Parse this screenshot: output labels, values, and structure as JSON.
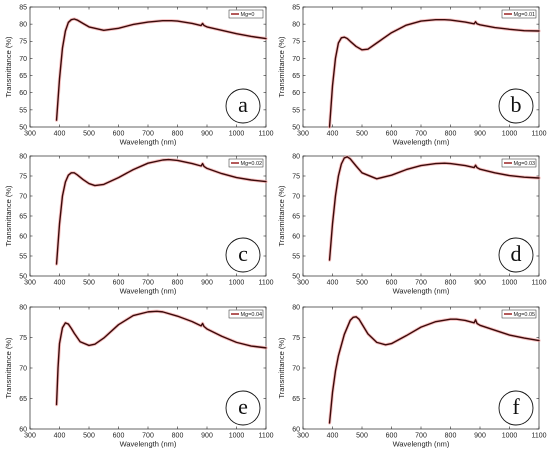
{
  "chart_data": [
    {
      "type": "line",
      "letter": "a",
      "legend": "Mg=0",
      "xlabel": "Wavelength (nm)",
      "ylabel": "Transmittance (%)",
      "xlim": [
        300,
        1100
      ],
      "ylim": [
        50,
        85
      ],
      "xticks": [
        300,
        400,
        500,
        600,
        700,
        800,
        900,
        1000,
        1100
      ],
      "yticks": [
        50,
        55,
        60,
        65,
        70,
        75,
        80,
        85
      ],
      "x": [
        390,
        400,
        410,
        420,
        430,
        440,
        450,
        460,
        480,
        500,
        550,
        600,
        650,
        700,
        750,
        780,
        800,
        850,
        880,
        885,
        890,
        900,
        950,
        1000,
        1050,
        1100
      ],
      "values": [
        52,
        64,
        73,
        78,
        80.5,
        81.3,
        81.5,
        81.2,
        80.2,
        79.2,
        78.2,
        78.8,
        79.9,
        80.6,
        81.0,
        81.0,
        80.9,
        80.2,
        79.6,
        80.2,
        79.6,
        79.2,
        78.2,
        77.2,
        76.4,
        75.8
      ]
    },
    {
      "type": "line",
      "letter": "b",
      "legend": "Mg=0.01",
      "xlabel": "Wavelength (nm)",
      "ylabel": "Transmittance (%)",
      "xlim": [
        300,
        1100
      ],
      "ylim": [
        50,
        85
      ],
      "xticks": [
        300,
        400,
        500,
        600,
        700,
        800,
        900,
        1000,
        1100
      ],
      "yticks": [
        50,
        55,
        60,
        65,
        70,
        75,
        80,
        85
      ],
      "x": [
        390,
        400,
        410,
        420,
        430,
        440,
        450,
        460,
        480,
        500,
        520,
        550,
        600,
        650,
        700,
        750,
        780,
        800,
        850,
        880,
        885,
        890,
        900,
        950,
        1000,
        1050,
        1100
      ],
      "values": [
        50,
        62,
        70,
        74.5,
        76,
        76.2,
        75.8,
        75,
        73.5,
        72.5,
        72.7,
        74.5,
        77.5,
        79.7,
        80.9,
        81.3,
        81.3,
        81.2,
        80.6,
        80.1,
        80.7,
        80.1,
        79.8,
        79.0,
        78.5,
        78.1,
        78.0
      ]
    },
    {
      "type": "line",
      "letter": "c",
      "legend": "Mg=0.02",
      "xlabel": "Wavelength (nm)",
      "ylabel": "Transmittance (%)",
      "xlim": [
        300,
        1100
      ],
      "ylim": [
        50,
        80
      ],
      "xticks": [
        300,
        400,
        500,
        600,
        700,
        800,
        900,
        1000,
        1100
      ],
      "yticks": [
        50,
        55,
        60,
        65,
        70,
        75,
        80
      ],
      "x": [
        390,
        400,
        410,
        420,
        430,
        440,
        450,
        460,
        480,
        500,
        520,
        550,
        600,
        650,
        700,
        750,
        770,
        800,
        850,
        880,
        885,
        890,
        900,
        950,
        1000,
        1050,
        1100
      ],
      "values": [
        53,
        63,
        70,
        73.5,
        75.2,
        75.8,
        75.8,
        75.3,
        74.1,
        73.1,
        72.6,
        72.9,
        74.6,
        76.6,
        78.2,
        79.0,
        79.1,
        78.9,
        78.1,
        77.5,
        78.1,
        77.4,
        76.9,
        75.6,
        74.6,
        74.0,
        73.6
      ]
    },
    {
      "type": "line",
      "letter": "d",
      "legend": "Mg=0.03",
      "xlabel": "Wavelength (nm)",
      "ylabel": "Transmittance (%)",
      "xlim": [
        300,
        1100
      ],
      "ylim": [
        50,
        80
      ],
      "xticks": [
        300,
        400,
        500,
        600,
        700,
        800,
        900,
        1000,
        1100
      ],
      "yticks": [
        50,
        55,
        60,
        65,
        70,
        75,
        80
      ],
      "x": [
        390,
        400,
        410,
        420,
        430,
        440,
        450,
        460,
        480,
        500,
        550,
        600,
        650,
        700,
        750,
        780,
        800,
        850,
        880,
        885,
        890,
        900,
        950,
        1000,
        1050,
        1100
      ],
      "values": [
        54,
        63,
        70,
        75,
        78,
        79.5,
        79.8,
        79.3,
        77.5,
        75.8,
        74.3,
        75.2,
        76.6,
        77.6,
        78.1,
        78.2,
        78.1,
        77.6,
        77.1,
        77.7,
        77.1,
        76.7,
        75.8,
        75.1,
        74.7,
        74.5
      ]
    },
    {
      "type": "line",
      "letter": "e",
      "legend": "Mg=0.04",
      "xlabel": "Wavelength (nm)",
      "ylabel": "Transmittance (%)",
      "xlim": [
        300,
        1100
      ],
      "ylim": [
        60,
        80
      ],
      "xticks": [
        300,
        400,
        500,
        600,
        700,
        800,
        900,
        1000,
        1100
      ],
      "yticks": [
        60,
        65,
        70,
        75,
        80
      ],
      "x": [
        390,
        395,
        400,
        410,
        420,
        430,
        440,
        450,
        470,
        500,
        520,
        550,
        600,
        650,
        700,
        730,
        750,
        800,
        850,
        880,
        885,
        890,
        900,
        950,
        1000,
        1050,
        1100
      ],
      "values": [
        64,
        70,
        74,
        76.6,
        77.4,
        77.2,
        76.5,
        75.7,
        74.3,
        73.7,
        73.9,
        74.9,
        77.1,
        78.6,
        79.2,
        79.3,
        79.2,
        78.5,
        77.6,
        76.9,
        77.3,
        76.8,
        76.4,
        75.2,
        74.2,
        73.6,
        73.3
      ]
    },
    {
      "type": "line",
      "letter": "f",
      "legend": "Mg=0.05",
      "xlabel": "Wavelength (nm)",
      "ylabel": "Transmittance (%)",
      "xlim": [
        300,
        1100
      ],
      "ylim": [
        60,
        80
      ],
      "xticks": [
        300,
        400,
        500,
        600,
        700,
        800,
        900,
        1000,
        1100
      ],
      "yticks": [
        60,
        65,
        70,
        75,
        80
      ],
      "x": [
        390,
        400,
        410,
        420,
        440,
        460,
        470,
        480,
        490,
        500,
        520,
        550,
        580,
        600,
        650,
        700,
        750,
        800,
        820,
        850,
        880,
        885,
        890,
        900,
        950,
        1000,
        1050,
        1100
      ],
      "values": [
        61,
        66,
        69.5,
        72,
        75.5,
        77.8,
        78.3,
        78.4,
        78.0,
        77.2,
        75.6,
        74.2,
        73.8,
        74.0,
        75.3,
        76.7,
        77.6,
        78.0,
        78.0,
        77.8,
        77.4,
        77.9,
        77.3,
        77.0,
        76.2,
        75.4,
        74.9,
        74.5
      ]
    }
  ]
}
